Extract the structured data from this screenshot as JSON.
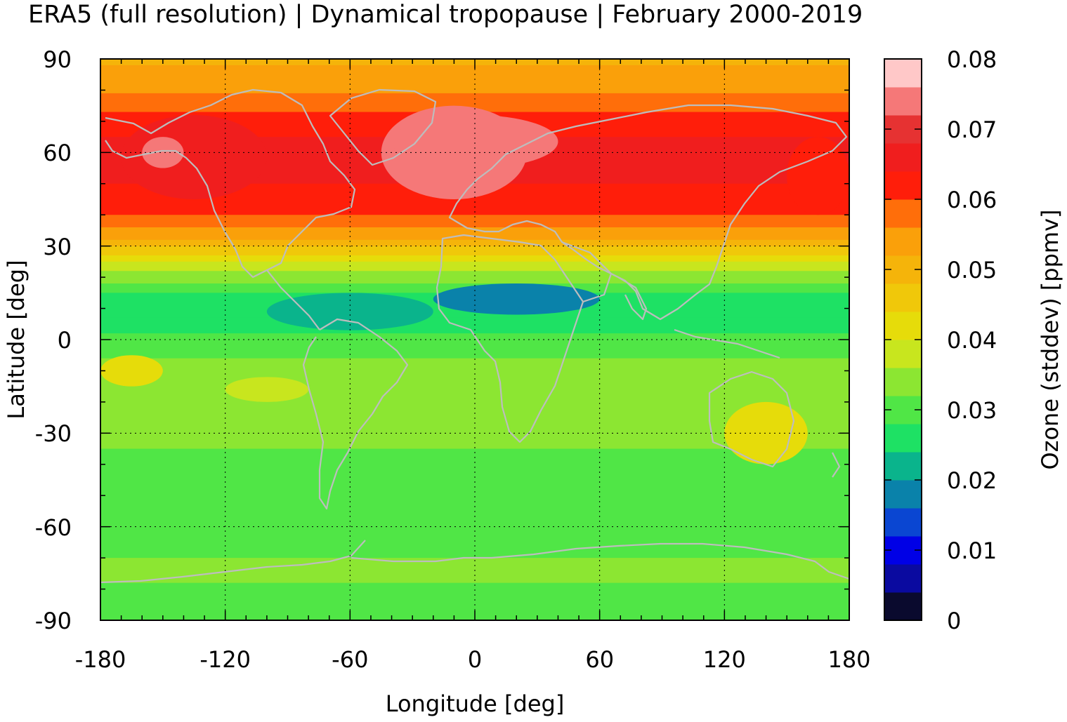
{
  "chart_data": {
    "type": "heatmap",
    "title": "ERA5 (full resolution) | Dynamical tropopause | February 2000-2019",
    "xlabel": "Longitude [deg]",
    "ylabel": "Latitude [deg]",
    "colorbar_label": "Ozone (stddev) [ppmv]",
    "xlim": [
      -180,
      180
    ],
    "ylim": [
      -90,
      90
    ],
    "xticks": [
      "-180",
      "-120",
      "-60",
      "0",
      "60",
      "120",
      "180"
    ],
    "yticks": [
      "90",
      "60",
      "30",
      "0",
      "-30",
      "-60",
      "-90"
    ],
    "grid": true,
    "colorbar": {
      "ticks": [
        "0.08",
        "0.07",
        "0.06",
        "0.05",
        "0.04",
        "0.03",
        "0.02",
        "0.01",
        "0"
      ],
      "range": [
        0,
        0.08
      ],
      "levels": [
        {
          "from": 0.0,
          "to": 0.004,
          "color": "#0a0a2e"
        },
        {
          "from": 0.004,
          "to": 0.008,
          "color": "#0a0aa0"
        },
        {
          "from": 0.008,
          "to": 0.012,
          "color": "#0000e6"
        },
        {
          "from": 0.012,
          "to": 0.016,
          "color": "#0a46d2"
        },
        {
          "from": 0.016,
          "to": 0.02,
          "color": "#0a82aa"
        },
        {
          "from": 0.02,
          "to": 0.024,
          "color": "#0ab48c"
        },
        {
          "from": 0.024,
          "to": 0.028,
          "color": "#1ee164"
        },
        {
          "from": 0.028,
          "to": 0.032,
          "color": "#50e646"
        },
        {
          "from": 0.032,
          "to": 0.036,
          "color": "#8ce632"
        },
        {
          "from": 0.036,
          "to": 0.04,
          "color": "#c8e61e"
        },
        {
          "from": 0.04,
          "to": 0.044,
          "color": "#e6dc0a"
        },
        {
          "from": 0.044,
          "to": 0.048,
          "color": "#f0c80a"
        },
        {
          "from": 0.048,
          "to": 0.052,
          "color": "#f5b40a"
        },
        {
          "from": 0.052,
          "to": 0.056,
          "color": "#faa00a"
        },
        {
          "from": 0.056,
          "to": 0.06,
          "color": "#ff6e0a"
        },
        {
          "from": 0.06,
          "to": 0.064,
          "color": "#ff1e0a"
        },
        {
          "from": 0.064,
          "to": 0.068,
          "color": "#f01e1e"
        },
        {
          "from": 0.068,
          "to": 0.072,
          "color": "#e63232"
        },
        {
          "from": 0.072,
          "to": 0.076,
          "color": "#f57878"
        },
        {
          "from": 0.076,
          "to": 0.08,
          "color": "#ffc8c8"
        }
      ]
    },
    "zonal_mean_profile": [
      {
        "lat": 90,
        "value": 0.051
      },
      {
        "lat": 80,
        "value": 0.055
      },
      {
        "lat": 70,
        "value": 0.062
      },
      {
        "lat": 60,
        "value": 0.066
      },
      {
        "lat": 50,
        "value": 0.064
      },
      {
        "lat": 40,
        "value": 0.06
      },
      {
        "lat": 32,
        "value": 0.052
      },
      {
        "lat": 25,
        "value": 0.04
      },
      {
        "lat": 15,
        "value": 0.028
      },
      {
        "lat": 8,
        "value": 0.024
      },
      {
        "lat": 0,
        "value": 0.029
      },
      {
        "lat": -10,
        "value": 0.034
      },
      {
        "lat": -20,
        "value": 0.036
      },
      {
        "lat": -35,
        "value": 0.032
      },
      {
        "lat": -50,
        "value": 0.029
      },
      {
        "lat": -65,
        "value": 0.031
      },
      {
        "lat": -75,
        "value": 0.033
      },
      {
        "lat": -90,
        "value": 0.028
      }
    ],
    "regions": [
      {
        "lon": [
          -170,
          -100
        ],
        "lat": [
          45,
          72
        ],
        "value": 0.066
      },
      {
        "lon": [
          -45,
          25
        ],
        "lat": [
          45,
          75
        ],
        "value": 0.072
      },
      {
        "lon": [
          -40,
          40
        ],
        "lat": [
          55,
          72
        ],
        "value": 0.074
      },
      {
        "lon": [
          -160,
          -140
        ],
        "lat": [
          55,
          65
        ],
        "value": 0.073
      },
      {
        "lon": [
          150,
          180
        ],
        "lat": [
          40,
          65
        ],
        "value": 0.062
      },
      {
        "lon": [
          -100,
          -20
        ],
        "lat": [
          3,
          15
        ],
        "value": 0.022
      },
      {
        "lon": [
          -20,
          60
        ],
        "lat": [
          8,
          18
        ],
        "value": 0.018
      },
      {
        "lon": [
          -180,
          -150
        ],
        "lat": [
          -15,
          -5
        ],
        "value": 0.042
      },
      {
        "lon": [
          120,
          160
        ],
        "lat": [
          -40,
          -20
        ],
        "value": 0.041
      },
      {
        "lon": [
          -120,
          -80
        ],
        "lat": [
          -20,
          -12
        ],
        "value": 0.039
      }
    ]
  }
}
